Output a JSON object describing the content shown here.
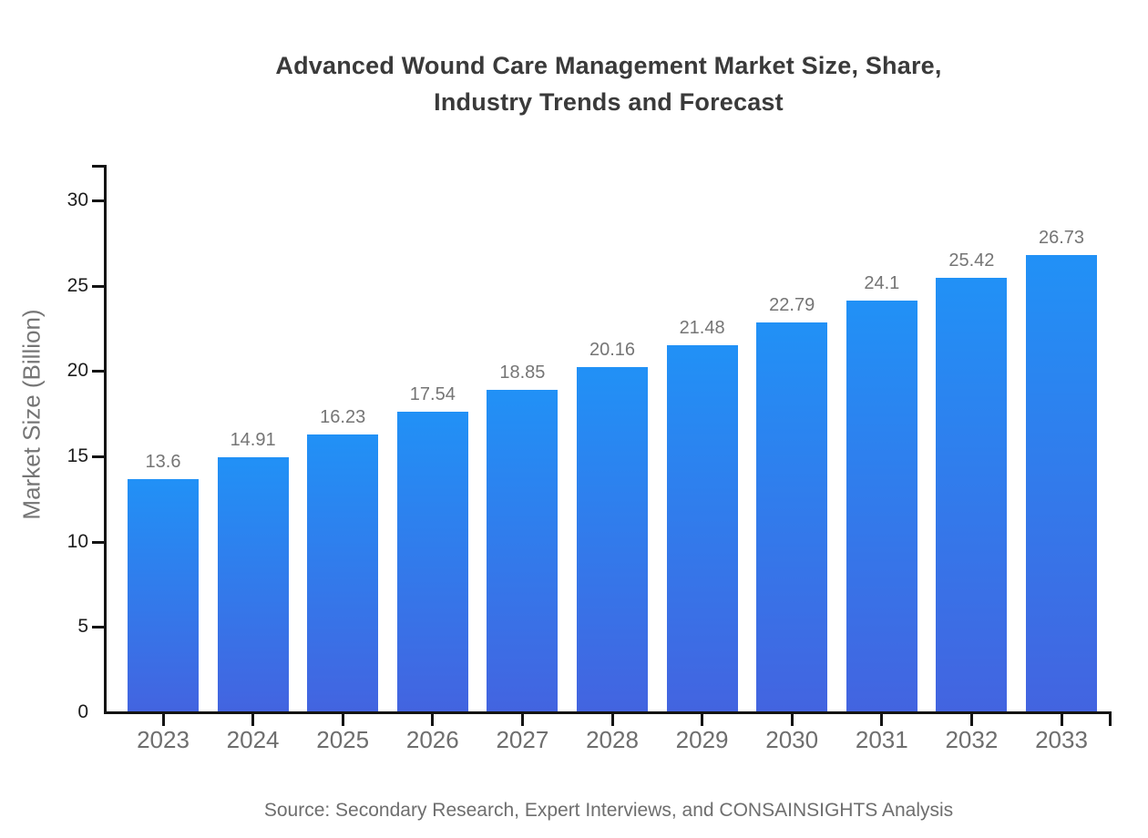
{
  "chart_data": {
    "type": "bar",
    "title": "Advanced Wound Care Management Market Size, Share, Industry Trends and Forecast",
    "title_lines": [
      "Advanced Wound Care Management Market Size, Share,",
      "Industry Trends and Forecast"
    ],
    "categories": [
      "2023",
      "2024",
      "2025",
      "2026",
      "2027",
      "2028",
      "2029",
      "2030",
      "2031",
      "2032",
      "2033"
    ],
    "values": [
      13.6,
      14.91,
      16.23,
      17.54,
      18.85,
      20.16,
      21.48,
      22.79,
      24.1,
      25.42,
      26.73
    ],
    "value_labels": [
      "13.6",
      "14.91",
      "16.23",
      "17.54",
      "18.85",
      "20.16",
      "21.48",
      "22.79",
      "24.1",
      "25.42",
      "26.73"
    ],
    "xlabel": "",
    "ylabel": "Market Size (Billion)",
    "ylim": [
      0,
      32
    ],
    "yticks": [
      0,
      5,
      10,
      15,
      20,
      25,
      30
    ],
    "grid": false,
    "legend": false,
    "source": "Source: Secondary Research, Expert Interviews, and CONSAINSIGHTS Analysis",
    "colors": {
      "bar_gradient_top": "#2191f6",
      "bar_gradient_bottom": "#4364e0",
      "axis": "#141414",
      "title": "#3a3a3a",
      "ytick_label": "#1d1d1d",
      "category_label": "#6e6e6e",
      "value_label": "#757575",
      "source": "#6e6e6e",
      "background": "#ffffff"
    }
  }
}
